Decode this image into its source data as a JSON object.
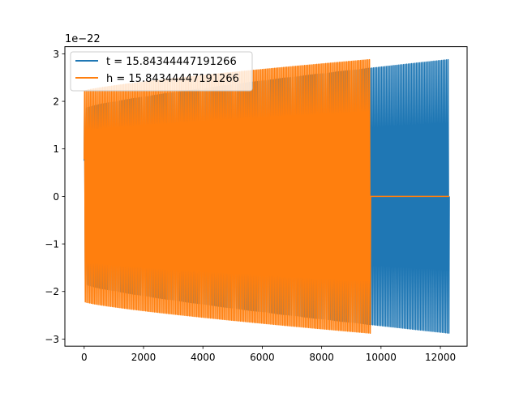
{
  "chart_data": {
    "type": "line",
    "title": "",
    "xlabel": "",
    "ylabel": "",
    "offset_text": "1e−22",
    "xlim": [
      -650,
      12900
    ],
    "ylim": [
      -3.15,
      3.15
    ],
    "xticks": [
      0,
      2000,
      4000,
      6000,
      8000,
      10000,
      12000
    ],
    "yticks": [
      -3,
      -2,
      -1,
      0,
      1,
      2,
      3
    ],
    "xtick_labels": [
      "0",
      "2000",
      "4000",
      "6000",
      "8000",
      "10000",
      "12000"
    ],
    "ytick_labels": [
      "−3",
      "−2",
      "−1",
      "0",
      "1",
      "2",
      "3"
    ],
    "grid": false,
    "legend_position": "top-left",
    "series": [
      {
        "name": "t = 15.84344447191266",
        "color": "#1f77b4",
        "x_start": 0,
        "x_end": 12300,
        "amplitude_start": 1.85,
        "amplitude_end": 2.88,
        "start_value": 0.75,
        "cycles": 230
      },
      {
        "name": "h = 15.84344447191266",
        "color": "#ff7f0e",
        "x_start": 0,
        "x_end": 9650,
        "amplitude_start": 2.22,
        "amplitude_end": 2.88,
        "start_value": 0.78,
        "cycles": 190,
        "after_value": 0,
        "after_x_end": 12300
      }
    ]
  }
}
